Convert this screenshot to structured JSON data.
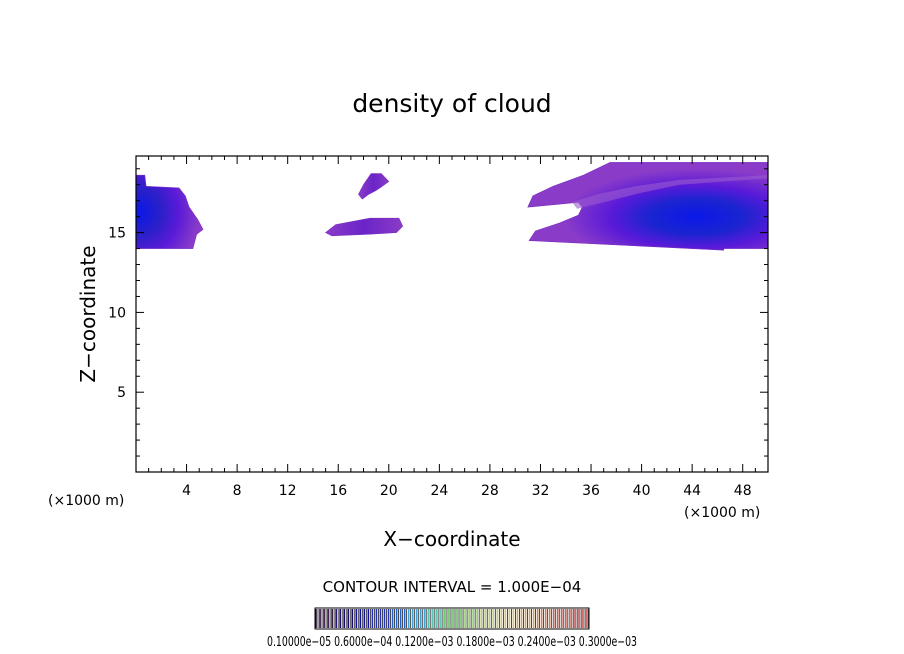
{
  "chart_data": {
    "type": "heatmap",
    "title": "density of cloud",
    "xlabel": "X−coordinate",
    "ylabel": "Z−coordinate",
    "x_unit": "(×1000 m)",
    "y_unit": "(×1000 m)",
    "xlim": [
      0,
      50
    ],
    "ylim": [
      0,
      19.8
    ],
    "x_ticks": [
      4,
      8,
      12,
      16,
      20,
      24,
      28,
      32,
      36,
      40,
      44,
      48
    ],
    "x_tick_labels": [
      "4",
      "8",
      "12",
      "16",
      "20",
      "24",
      "28",
      "32",
      "36",
      "40",
      "44",
      "48"
    ],
    "y_ticks": [
      5,
      10,
      15
    ],
    "y_tick_labels": [
      "5",
      "10",
      "15"
    ],
    "contour_interval_text": "CONTOUR INTERVAL = 1.000E−04",
    "colorbar_label": "0.10000e−05  0.6000e−04  0.1200e−03  0.1800e−03  0.2400e−03  0.3000e−03",
    "colorbar_colors": [
      "#2a0a3a",
      "#1a0a6a",
      "#1010a0",
      "#2030c0",
      "#2060c8",
      "#40a0d0",
      "#50c0b0",
      "#60c060",
      "#90d060",
      "#c0d070",
      "#d8c070",
      "#d0a060",
      "#d08050",
      "#d06050",
      "#c04040"
    ],
    "value_colors": {
      "low": "#8a3cc8",
      "mid": "#5a1ad8",
      "high": "#1028d8",
      "max": "#0a18e8"
    },
    "regions": [
      {
        "name": "left-cloud",
        "x": [
          0,
          5
        ],
        "z": [
          14,
          18.6
        ],
        "peak_x": 1.0,
        "peak_z": 15.8,
        "peak": "high"
      },
      {
        "name": "small-upper-cloud",
        "x": [
          17.2,
          20
        ],
        "z": [
          17.2,
          18.7
        ],
        "peak_x": 18.5,
        "peak_z": 18,
        "peak": "low"
      },
      {
        "name": "small-lower-cloud",
        "x": [
          15,
          21
        ],
        "z": [
          14.9,
          15.9
        ],
        "peak_x": 18,
        "peak_z": 15.4,
        "peak": "low"
      },
      {
        "name": "right-cloud",
        "x": [
          31,
          50
        ],
        "z": [
          14,
          19.5
        ],
        "peak_x": 44,
        "peak_z": 16,
        "peak": "max"
      }
    ]
  }
}
